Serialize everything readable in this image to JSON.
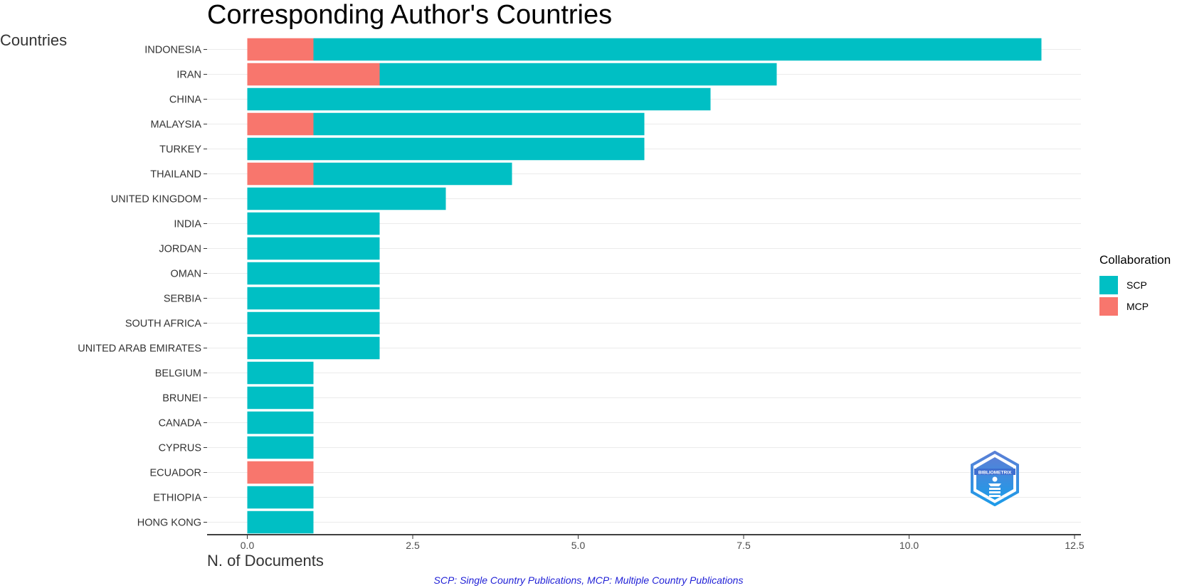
{
  "colors": {
    "SCP": "#00BFC4",
    "MCP": "#F8766D",
    "grid": "#EBEBEB",
    "caption": "#1F1FD6"
  },
  "legend": {
    "title": "Collaboration",
    "items": [
      {
        "label": "SCP",
        "color": "#00BFC4"
      },
      {
        "label": "MCP",
        "color": "#F8766D"
      }
    ]
  },
  "caption": "SCP: Single Country Publications, MCP: Multiple Country Publications",
  "logo_text": "BIBLIOMETRIX",
  "chart_data": {
    "type": "bar",
    "orientation": "horizontal",
    "stacked": true,
    "title": "Corresponding Author's Countries",
    "xlabel": "N. of Documents",
    "ylabel": "Countries",
    "xlim": [
      0,
      12.5
    ],
    "xticks": [
      0.0,
      2.5,
      5.0,
      7.5,
      10.0,
      12.5
    ],
    "xtick_labels": [
      "0.0",
      "2.5",
      "5.0",
      "7.5",
      "10.0",
      "12.5"
    ],
    "grid": true,
    "legend_position": "right",
    "categories": [
      "INDONESIA",
      "IRAN",
      "CHINA",
      "MALAYSIA",
      "TURKEY",
      "THAILAND",
      "UNITED KINGDOM",
      "INDIA",
      "JORDAN",
      "OMAN",
      "SERBIA",
      "SOUTH AFRICA",
      "UNITED ARAB EMIRATES",
      "BELGIUM",
      "BRUNEI",
      "CANADA",
      "CYPRUS",
      "ECUADOR",
      "ETHIOPIA",
      "HONG KONG"
    ],
    "series": [
      {
        "name": "MCP",
        "values": [
          1,
          2,
          0,
          1,
          0,
          1,
          0,
          0,
          0,
          0,
          0,
          0,
          0,
          0,
          0,
          0,
          0,
          1,
          0,
          0
        ]
      },
      {
        "name": "SCP",
        "values": [
          11,
          6,
          7,
          5,
          6,
          3,
          3,
          2,
          2,
          2,
          2,
          2,
          2,
          1,
          1,
          1,
          1,
          0,
          1,
          1
        ]
      }
    ]
  }
}
